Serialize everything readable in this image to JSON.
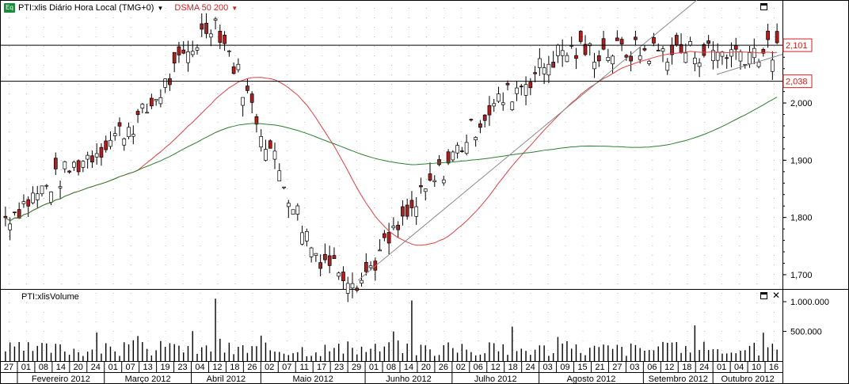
{
  "header": {
    "badge": "Eq",
    "title": "PTI:xlis Diário Hora Local (TMG+0)",
    "indicator": "DSMA 50 200"
  },
  "volume_panel": {
    "title": "PTI:xlisVolume"
  },
  "colors": {
    "up": "#ffffff",
    "down": "#b02020",
    "sma50": "#e04040",
    "sma200": "#2e7d32",
    "trend": "#888888"
  },
  "chart_data": [
    {
      "type": "candlestick",
      "title": "PTI:xlis Diário Hora Local (TMG+0)",
      "price_axis": {
        "ticks": [
          "1,700",
          "1,800",
          "1,900",
          "2,000"
        ],
        "ylim": [
          1.675,
          2.18
        ]
      },
      "levels": [
        {
          "label": "2,101",
          "value": 2.101
        },
        {
          "label": "2,038",
          "value": 2.038
        }
      ],
      "series": [
        {
          "name": "DSMA 50"
        },
        {
          "name": "DSMA 200"
        }
      ],
      "day_ticks": [
        "27",
        "01",
        "08",
        "14",
        "20",
        "24",
        "01",
        "07",
        "13",
        "19",
        "23",
        "04",
        "12",
        "18",
        "26",
        "02",
        "07",
        "11",
        "17",
        "23",
        "29",
        "01",
        "08",
        "14",
        "20",
        "26",
        "02",
        "06",
        "12",
        "18",
        "24",
        "03",
        "09",
        "15",
        "21",
        "27",
        "03",
        "06",
        "12",
        "18",
        "24",
        "01",
        "04",
        "10",
        "16"
      ],
      "months": [
        "Fevereiro 2012",
        "Março 2012",
        "Abril 2012",
        "Maio 2012",
        "Junho 2012",
        "Julho 2012",
        "Agosto 2012",
        "Setembro 2012",
        "Outubro 2012"
      ],
      "key_points": [
        {
          "date": "Fev 2012 start",
          "close": 1.8
        },
        {
          "date": "Mar 2012",
          "close": 1.98
        },
        {
          "date": "Abr 12 2012",
          "close": 2.15
        },
        {
          "date": "Mai 2012",
          "close": 1.74
        },
        {
          "date": "Mai 29 2012",
          "close": 1.69
        },
        {
          "date": "Jul 2012",
          "close": 1.98
        },
        {
          "date": "Ago 2012",
          "close": 2.09
        },
        {
          "date": "Out 16 2012",
          "close": 2.09
        }
      ]
    },
    {
      "type": "bar",
      "title": "PTI:xlisVolume",
      "y_ticks": [
        "1.000.000",
        "500.000"
      ],
      "ylim": [
        0,
        1200000
      ]
    }
  ]
}
